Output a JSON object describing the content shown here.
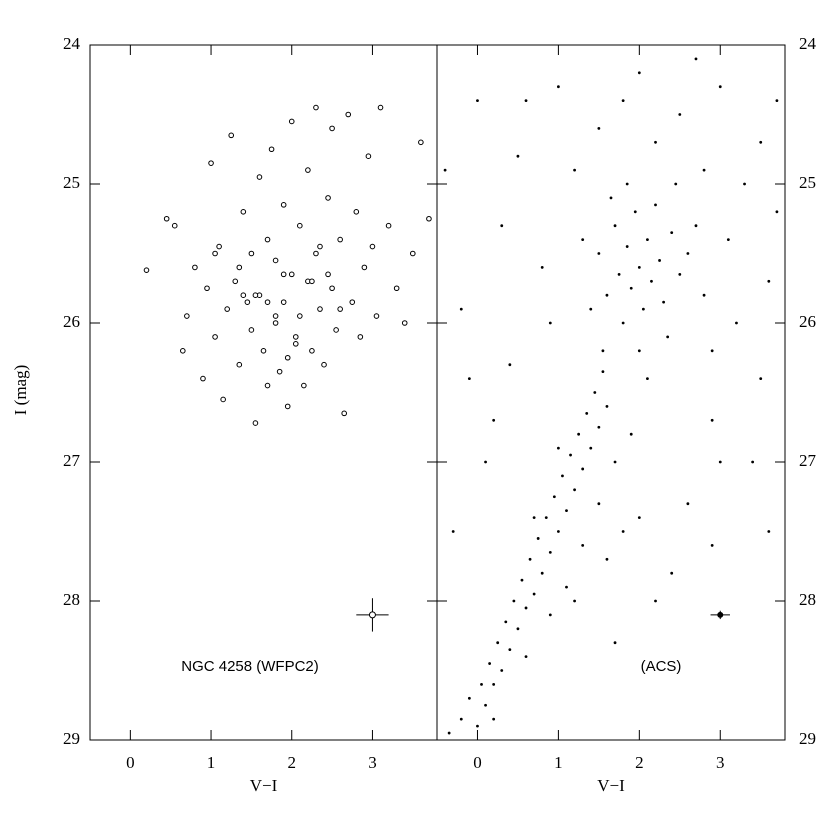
{
  "chart_data": [
    {
      "type": "scatter",
      "marker": "open",
      "xlabel": "V−I",
      "ylabel": "I (mag)",
      "annotation": "NGC 4258 (WFPC2)",
      "xlim": [
        -0.5,
        3.8
      ],
      "ylim": [
        29,
        24
      ],
      "xticks": [
        0,
        1,
        2,
        3
      ],
      "yticks": [
        24,
        25,
        26,
        27,
        28,
        29
      ],
      "y_tick_side": "left",
      "x": [
        0.2,
        0.45,
        0.55,
        0.65,
        0.7,
        0.8,
        0.9,
        0.95,
        1.0,
        1.05,
        1.1,
        1.15,
        1.2,
        1.25,
        1.3,
        1.35,
        1.4,
        1.45,
        1.5,
        1.5,
        1.55,
        1.6,
        1.6,
        1.65,
        1.7,
        1.7,
        1.75,
        1.8,
        1.8,
        1.85,
        1.9,
        1.9,
        1.95,
        2.0,
        2.0,
        2.05,
        2.1,
        2.1,
        2.15,
        2.2,
        2.2,
        2.25,
        2.3,
        2.3,
        2.35,
        2.4,
        2.45,
        2.5,
        2.5,
        2.55,
        2.6,
        2.65,
        2.7,
        2.75,
        2.8,
        2.85,
        2.9,
        2.95,
        3.0,
        3.05,
        3.1,
        3.2,
        3.3,
        3.4,
        3.5,
        3.6,
        3.7,
        1.35,
        1.8,
        2.25,
        2.6,
        1.05,
        1.55,
        2.05,
        2.45,
        1.7,
        1.95,
        2.35,
        1.4,
        1.9
      ],
      "values": [
        25.62,
        25.25,
        25.3,
        26.2,
        25.95,
        25.6,
        26.4,
        25.75,
        24.85,
        26.1,
        25.45,
        26.55,
        25.9,
        24.65,
        25.7,
        26.3,
        25.2,
        25.85,
        26.05,
        25.5,
        26.72,
        24.95,
        25.8,
        26.2,
        25.4,
        26.45,
        24.75,
        25.95,
        25.55,
        26.35,
        25.15,
        25.85,
        26.6,
        24.55,
        25.65,
        26.1,
        25.3,
        25.95,
        26.45,
        24.9,
        25.7,
        26.2,
        24.45,
        25.5,
        25.9,
        26.3,
        25.1,
        24.6,
        25.75,
        26.05,
        25.4,
        26.65,
        24.5,
        25.85,
        25.2,
        26.1,
        25.6,
        24.8,
        25.45,
        25.95,
        24.45,
        25.3,
        25.75,
        26.0,
        25.5,
        24.7,
        25.25,
        25.6,
        26.0,
        25.7,
        25.9,
        25.5,
        25.8,
        26.15,
        25.65,
        25.85,
        26.25,
        25.45,
        25.8,
        25.65
      ],
      "error_bar": {
        "x": 3,
        "y": 28.1,
        "xerr": 0.2,
        "yerr": 0.12
      }
    },
    {
      "type": "scatter",
      "marker": "filled",
      "xlabel": "V−I",
      "annotation": "(ACS)",
      "xlim": [
        -0.5,
        3.8
      ],
      "ylim": [
        29,
        24
      ],
      "xticks": [
        0,
        1,
        2,
        3
      ],
      "yticks": [
        24,
        25,
        26,
        27,
        28,
        29
      ],
      "y_tick_side": "right",
      "x": [
        -0.35,
        -0.2,
        -0.1,
        0.0,
        0.05,
        0.1,
        0.15,
        0.2,
        0.25,
        0.3,
        0.35,
        0.4,
        0.45,
        0.5,
        0.55,
        0.6,
        0.65,
        0.7,
        0.75,
        0.8,
        0.85,
        0.9,
        0.95,
        1.0,
        1.05,
        1.1,
        1.15,
        1.2,
        1.25,
        1.3,
        1.35,
        1.4,
        1.45,
        1.5,
        1.55,
        1.6,
        1.1,
        1.3,
        1.5,
        1.7,
        1.9,
        0.9,
        1.2,
        1.6,
        1.8,
        0.6,
        0.2,
        1.0,
        0.7,
        2.0,
        1.5,
        1.6,
        1.7,
        1.75,
        1.8,
        1.85,
        1.9,
        1.95,
        2.0,
        2.05,
        2.1,
        2.15,
        2.2,
        2.25,
        2.3,
        2.4,
        2.5,
        2.6,
        1.4,
        1.55,
        1.65,
        2.0,
        2.35,
        2.7,
        2.8,
        1.3,
        2.9,
        1.85,
        2.45,
        2.1,
        0.0,
        0.5,
        1.0,
        1.5,
        2.0,
        2.5,
        3.0,
        3.5,
        3.7,
        3.3,
        2.8,
        0.3,
        0.8,
        -0.2,
        0.4,
        3.6,
        3.2,
        3.5,
        2.9,
        3.4,
        2.6,
        2.9,
        2.4,
        0.1,
        -0.3,
        0.2,
        1.2,
        2.2,
        3.1,
        0.6,
        -0.4,
        1.8,
        2.7,
        3.7,
        0.9,
        3.0,
        2.2,
        1.7,
        3.6,
        -0.1
      ],
      "values": [
        28.95,
        28.85,
        28.7,
        28.9,
        28.6,
        28.75,
        28.45,
        28.6,
        28.3,
        28.5,
        28.15,
        28.35,
        28.0,
        28.2,
        27.85,
        28.05,
        27.7,
        27.95,
        27.55,
        27.8,
        27.4,
        27.65,
        27.25,
        27.5,
        27.1,
        27.35,
        26.95,
        27.2,
        26.8,
        27.05,
        26.65,
        26.9,
        26.5,
        26.75,
        26.35,
        26.6,
        27.9,
        27.6,
        27.3,
        27.0,
        26.8,
        28.1,
        28.0,
        27.7,
        27.5,
        28.4,
        28.85,
        26.9,
        27.4,
        27.4,
        25.5,
        25.8,
        25.3,
        25.65,
        26.0,
        25.45,
        25.75,
        25.2,
        25.6,
        25.9,
        25.4,
        25.7,
        25.15,
        25.55,
        25.85,
        25.35,
        25.65,
        25.5,
        25.9,
        26.2,
        25.1,
        26.2,
        26.1,
        25.3,
        25.8,
        25.4,
        26.2,
        25.0,
        25.0,
        26.4,
        24.4,
        24.8,
        24.3,
        24.6,
        24.2,
        24.5,
        24.3,
        24.7,
        25.2,
        25.0,
        24.9,
        25.3,
        25.6,
        25.9,
        26.3,
        25.7,
        26.0,
        26.4,
        26.7,
        27.0,
        27.3,
        27.6,
        27.8,
        27.0,
        27.5,
        26.7,
        24.9,
        24.7,
        25.4,
        24.4,
        24.9,
        24.4,
        24.1,
        24.4,
        26.0,
        27.0,
        28.0,
        28.3,
        27.5,
        26.4
      ],
      "error_bar": {
        "x": 3,
        "y": 28.1,
        "xerr": 0.12,
        "yerr": 0.03
      }
    }
  ]
}
